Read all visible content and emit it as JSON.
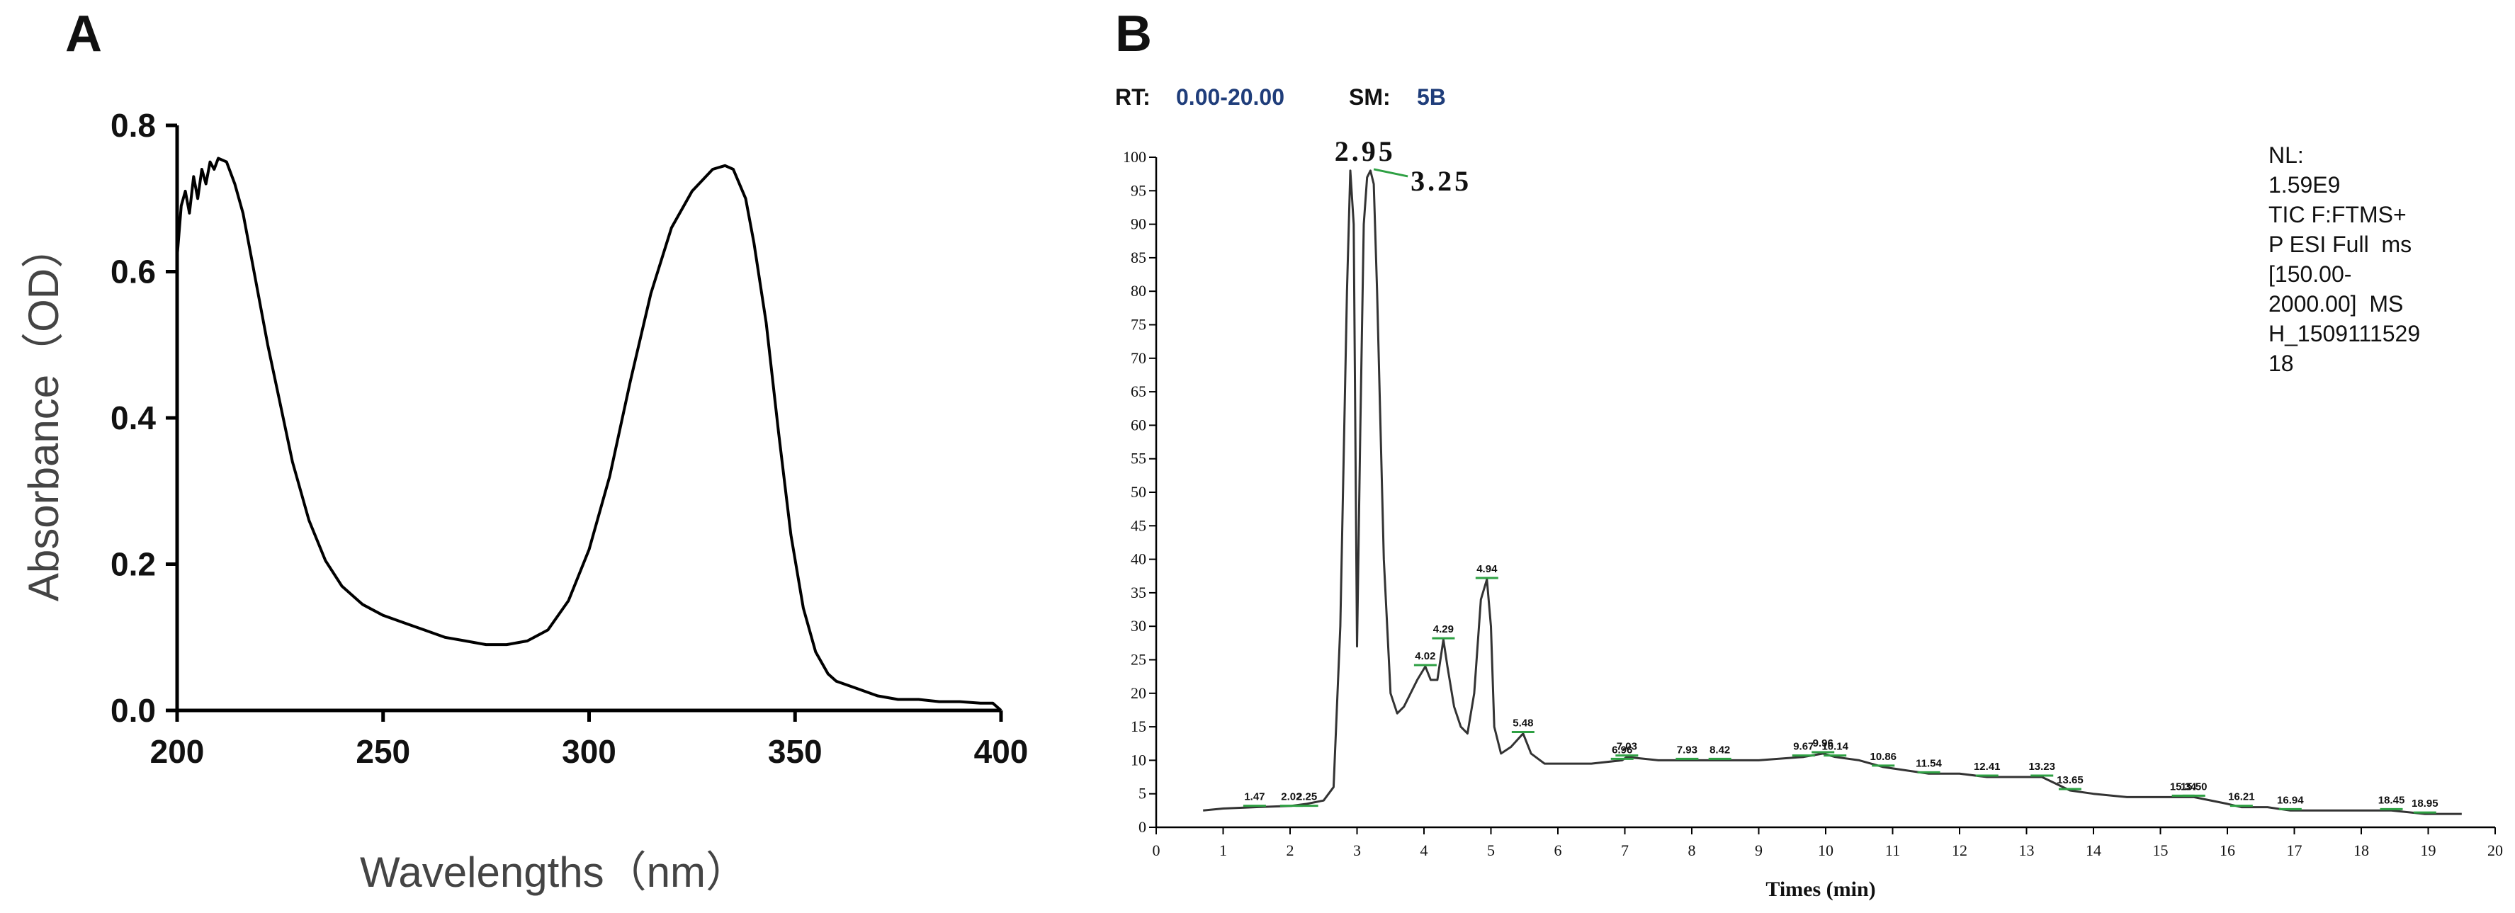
{
  "chart_data": [
    {
      "panel_label": "A",
      "type": "line",
      "title": "",
      "xlabel": "Wavelengths（nm）",
      "ylabel": "Absorbance（OD）",
      "xlim": [
        200,
        400
      ],
      "ylim": [
        0,
        0.8
      ],
      "xticks": [
        "200",
        "250",
        "300",
        "350",
        "400"
      ],
      "yticks": [
        "0.0",
        "0.2",
        "0.4",
        "0.6",
        "0.8"
      ],
      "grid": false,
      "series": [
        {
          "x": [
            200,
            201,
            202,
            203,
            204,
            205,
            206,
            207,
            208,
            209,
            210,
            212,
            214,
            216,
            218,
            220,
            222,
            225,
            228,
            232,
            236,
            240,
            245,
            250,
            255,
            260,
            265,
            270,
            275,
            280,
            285,
            290,
            295,
            300,
            305,
            310,
            315,
            320,
            325,
            330,
            333,
            335,
            338,
            340,
            343,
            346,
            349,
            352,
            355,
            358,
            360,
            365,
            370,
            375,
            380,
            385,
            390,
            395,
            398,
            400
          ],
          "y": [
            0.62,
            0.69,
            0.71,
            0.68,
            0.73,
            0.7,
            0.74,
            0.72,
            0.75,
            0.74,
            0.755,
            0.75,
            0.72,
            0.68,
            0.62,
            0.56,
            0.5,
            0.42,
            0.34,
            0.26,
            0.205,
            0.17,
            0.145,
            0.13,
            0.12,
            0.11,
            0.1,
            0.095,
            0.09,
            0.09,
            0.095,
            0.11,
            0.15,
            0.22,
            0.32,
            0.45,
            0.57,
            0.66,
            0.71,
            0.74,
            0.745,
            0.74,
            0.7,
            0.64,
            0.53,
            0.38,
            0.24,
            0.14,
            0.08,
            0.05,
            0.04,
            0.03,
            0.02,
            0.015,
            0.015,
            0.012,
            0.012,
            0.01,
            0.01,
            0.0
          ]
        }
      ]
    },
    {
      "panel_label": "B",
      "type": "line",
      "title": "",
      "xlabel": "Times (min)",
      "ylabel": "",
      "xlim": [
        0,
        20
      ],
      "ylim": [
        0,
        100
      ],
      "xticks": [
        "0",
        "1",
        "2",
        "3",
        "4",
        "5",
        "6",
        "7",
        "8",
        "9",
        "10",
        "11",
        "12",
        "13",
        "14",
        "15",
        "16",
        "17",
        "18",
        "19",
        "20"
      ],
      "yticks": [
        "0",
        "5",
        "10",
        "15",
        "20",
        "25",
        "30",
        "35",
        "40",
        "45",
        "50",
        "55",
        "60",
        "65",
        "70",
        "75",
        "80",
        "85",
        "90",
        "95",
        "100"
      ],
      "grid": false,
      "header": {
        "rt_label": "RT:",
        "rt_value": "0.00-20.00",
        "sm_label": "SM:",
        "sm_value": "5B"
      },
      "info_lines": [
        "NL:",
        "1.59E9",
        "TIC F:FTMS+",
        "P ESI Full  ms",
        "[150.00-",
        "2000.00]  MS",
        "H_1509111529",
        "18"
      ],
      "peak_labels_large": [
        {
          "label": "2.95",
          "x": 2.95,
          "y": 98
        },
        {
          "label": "3.25",
          "x": 3.25,
          "y": 98
        }
      ],
      "peak_labels": [
        {
          "label": "1.47",
          "x": 1.47,
          "y": 3
        },
        {
          "label": "2.02",
          "x": 2.02,
          "y": 3
        },
        {
          "label": "2.25",
          "x": 2.25,
          "y": 3
        },
        {
          "label": "4.02",
          "x": 4.02,
          "y": 24
        },
        {
          "label": "4.29",
          "x": 4.29,
          "y": 28
        },
        {
          "label": "4.94",
          "x": 4.94,
          "y": 37
        },
        {
          "label": "5.48",
          "x": 5.48,
          "y": 14
        },
        {
          "label": "6.96",
          "x": 6.96,
          "y": 10
        },
        {
          "label": "7.03",
          "x": 7.03,
          "y": 10.5
        },
        {
          "label": "7.93",
          "x": 7.93,
          "y": 10
        },
        {
          "label": "8.42",
          "x": 8.42,
          "y": 10
        },
        {
          "label": "9.67",
          "x": 9.67,
          "y": 10.5
        },
        {
          "label": "9.96",
          "x": 9.96,
          "y": 11
        },
        {
          "label": "10.14",
          "x": 10.14,
          "y": 10.5
        },
        {
          "label": "10.86",
          "x": 10.86,
          "y": 9
        },
        {
          "label": "11.54",
          "x": 11.54,
          "y": 8
        },
        {
          "label": "12.41",
          "x": 12.41,
          "y": 7.5
        },
        {
          "label": "13.23",
          "x": 13.23,
          "y": 7.5
        },
        {
          "label": "13.65",
          "x": 13.65,
          "y": 5.5
        },
        {
          "label": "15.34",
          "x": 15.34,
          "y": 4.5
        },
        {
          "label": "15.50",
          "x": 15.5,
          "y": 4.5
        },
        {
          "label": "16.21",
          "x": 16.21,
          "y": 3
        },
        {
          "label": "16.94",
          "x": 16.94,
          "y": 2.5
        },
        {
          "label": "18.45",
          "x": 18.45,
          "y": 2.5
        },
        {
          "label": "18.95",
          "x": 18.95,
          "y": 2
        }
      ],
      "series": [
        {
          "x": [
            0.7,
            1.0,
            1.47,
            2.02,
            2.25,
            2.5,
            2.65,
            2.75,
            2.85,
            2.9,
            2.95,
            3.0,
            3.05,
            3.1,
            3.15,
            3.2,
            3.25,
            3.3,
            3.4,
            3.5,
            3.6,
            3.7,
            3.8,
            3.9,
            4.02,
            4.1,
            4.2,
            4.29,
            4.35,
            4.45,
            4.55,
            4.65,
            4.75,
            4.85,
            4.94,
            5.0,
            5.05,
            5.15,
            5.3,
            5.48,
            5.6,
            5.8,
            6.0,
            6.5,
            6.96,
            7.03,
            7.5,
            7.93,
            8.42,
            9.0,
            9.67,
            9.96,
            10.14,
            10.5,
            10.86,
            11.2,
            11.54,
            12.0,
            12.41,
            12.8,
            13.23,
            13.65,
            14.0,
            14.5,
            15.0,
            15.34,
            15.5,
            16.0,
            16.21,
            16.6,
            16.94,
            17.5,
            18.0,
            18.45,
            18.95,
            19.5
          ],
          "y": [
            2.5,
            2.8,
            3,
            3.2,
            3.5,
            4,
            6,
            30,
            80,
            98,
            90,
            27,
            60,
            90,
            97,
            98,
            96,
            80,
            40,
            20,
            17,
            18,
            20,
            22,
            24,
            22,
            22,
            28,
            24,
            18,
            15,
            14,
            20,
            34,
            37,
            30,
            15,
            11,
            12,
            14,
            11,
            9.5,
            9.5,
            9.5,
            10,
            10.5,
            10,
            10,
            10,
            10,
            10.5,
            11,
            10.5,
            10,
            9,
            8.5,
            8,
            8,
            7.5,
            7.5,
            7.5,
            5.5,
            5,
            4.5,
            4.5,
            4.5,
            4.5,
            3.5,
            3,
            3,
            2.5,
            2.5,
            2.5,
            2.5,
            2,
            2
          ]
        }
      ]
    }
  ]
}
